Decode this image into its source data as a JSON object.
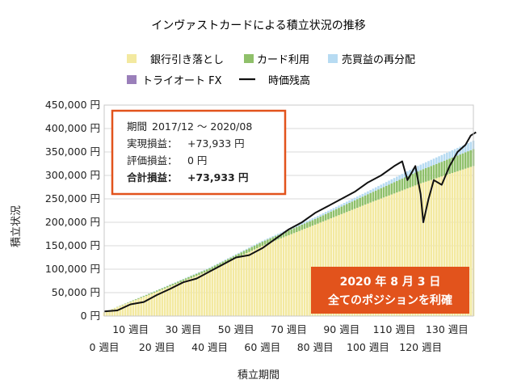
{
  "chart_data": {
    "type": "bar",
    "title": "インヴァストカードによる積立状況の推移",
    "xlabel": "積立期間",
    "ylabel": "積立状況",
    "ylim": [
      0,
      450000
    ],
    "y_ticks": [
      "0 円",
      "50,000 円",
      "100,000 円",
      "150,000 円",
      "200,000 円",
      "250,000 円",
      "300,000 円",
      "350,000 円",
      "400,000 円",
      "450,000 円"
    ],
    "x_tick_labels_row1": [
      "10 週目",
      "30 週目",
      "50 週目",
      "70 週目",
      "90 週目",
      "110 週目",
      "130 週目"
    ],
    "x_tick_labels_row2": [
      "0 週目",
      "20 週目",
      "40 週目",
      "60 週目",
      "80 週目",
      "100 週目",
      "120 週目"
    ],
    "grid": true,
    "stacked": true,
    "legend_position": "top",
    "x": {
      "start_week": 0,
      "end_week": 140
    },
    "series": [
      {
        "name": "銀行引き落とし",
        "color": "#f3e9a0",
        "values": [
          [
            0,
            8000
          ],
          [
            20,
            52000
          ],
          [
            40,
            97000
          ],
          [
            60,
            150000
          ],
          [
            80,
            195000
          ],
          [
            100,
            240000
          ],
          [
            120,
            283000
          ],
          [
            140,
            320000
          ]
        ]
      },
      {
        "name": "カード利用",
        "color": "#8fc06a",
        "values": [
          [
            0,
            0
          ],
          [
            40,
            5000
          ],
          [
            80,
            12000
          ],
          [
            100,
            20000
          ],
          [
            120,
            28000
          ],
          [
            140,
            36000
          ]
        ]
      },
      {
        "name": "売買益の再分配",
        "color": "#b7dbf2",
        "values": [
          [
            0,
            0
          ],
          [
            60,
            2000
          ],
          [
            100,
            6000
          ],
          [
            120,
            12000
          ],
          [
            140,
            18000
          ]
        ]
      },
      {
        "name": "トライオート FX",
        "color": "#9a7fba",
        "values": [
          [
            0,
            0
          ],
          [
            140,
            0
          ]
        ]
      },
      {
        "name": "時価残高",
        "color": "#111111",
        "type": "line",
        "values": [
          [
            0,
            10000
          ],
          [
            5,
            12000
          ],
          [
            10,
            25000
          ],
          [
            15,
            30000
          ],
          [
            20,
            45000
          ],
          [
            25,
            58000
          ],
          [
            30,
            72000
          ],
          [
            35,
            80000
          ],
          [
            40,
            95000
          ],
          [
            45,
            110000
          ],
          [
            50,
            125000
          ],
          [
            55,
            130000
          ],
          [
            60,
            145000
          ],
          [
            65,
            165000
          ],
          [
            70,
            185000
          ],
          [
            75,
            200000
          ],
          [
            80,
            220000
          ],
          [
            85,
            235000
          ],
          [
            90,
            250000
          ],
          [
            95,
            265000
          ],
          [
            100,
            285000
          ],
          [
            105,
            300000
          ],
          [
            110,
            320000
          ],
          [
            113,
            330000
          ],
          [
            115,
            290000
          ],
          [
            118,
            320000
          ],
          [
            120,
            260000
          ],
          [
            121,
            200000
          ],
          [
            123,
            250000
          ],
          [
            125,
            290000
          ],
          [
            128,
            280000
          ],
          [
            131,
            320000
          ],
          [
            134,
            350000
          ],
          [
            137,
            365000
          ],
          [
            139,
            385000
          ],
          [
            141,
            392000
          ]
        ]
      }
    ],
    "info_box": {
      "period_label": "期間",
      "period_value": "2017/12 ～ 2020/08",
      "realized_label": "実現損益：",
      "realized_value": "+73,933 円",
      "unrealized_label": "評価損益：",
      "unrealized_value": "0 円",
      "total_label": "合計損益：",
      "total_value": "+73,933 円"
    },
    "banner": {
      "line1": "2020 年 8 月 3 日",
      "line2": "全てのポジションを利確"
    }
  },
  "colors": {
    "accent": "#e2531c",
    "grid": "#d9d9d9"
  }
}
